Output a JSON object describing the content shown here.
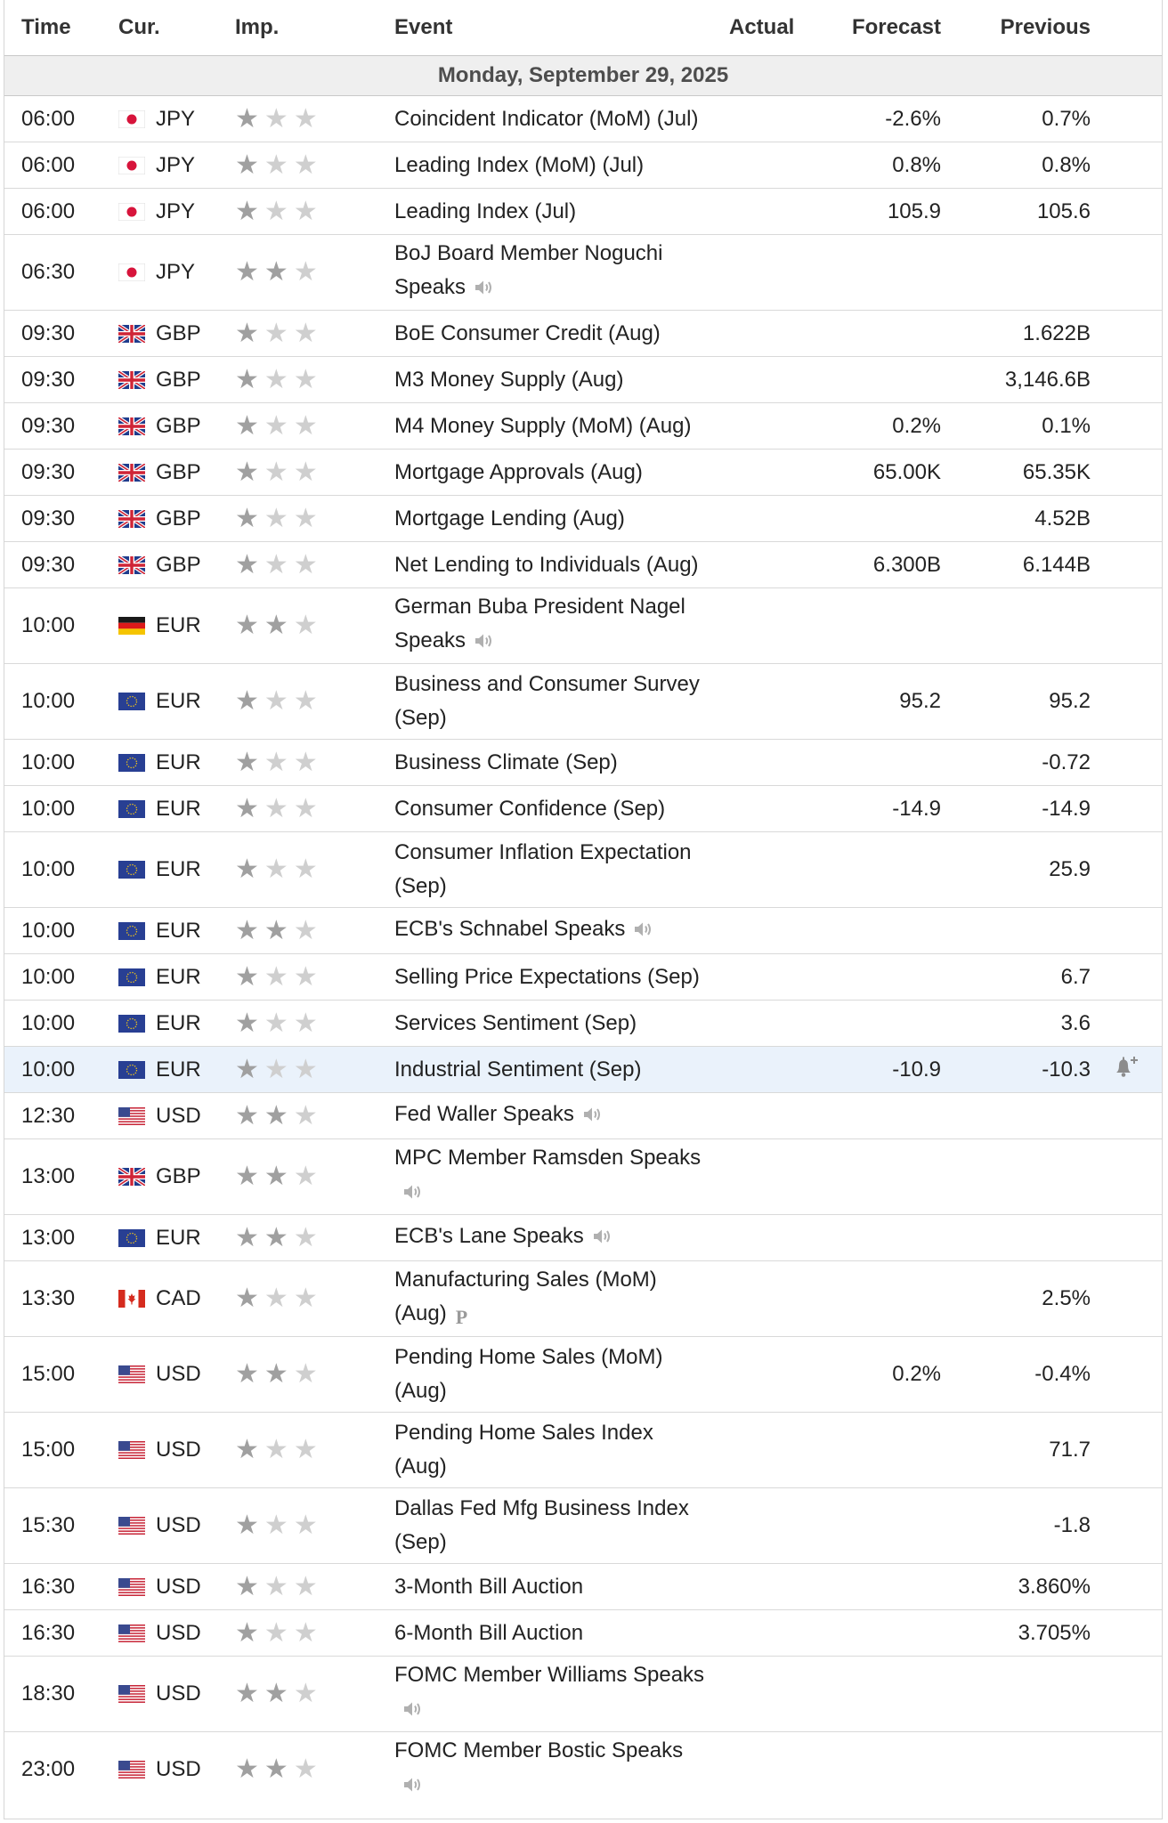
{
  "headers": {
    "time": "Time",
    "cur": "Cur.",
    "imp": "Imp.",
    "event": "Event",
    "actual": "Actual",
    "forecast": "Forecast",
    "previous": "Previous"
  },
  "date_label": "Monday, September 29, 2025",
  "colors": {
    "border": "#d9d9d9",
    "date_row_bg": "#efefef",
    "highlight_row_bg": "#eaf2fb",
    "star_filled": "#a0a0a0",
    "star_empty": "#cfcfcf"
  },
  "icons": {
    "speech": "speaker-icon",
    "preliminary": "preliminary-icon",
    "alert": "bell-plus-icon"
  },
  "events": [
    {
      "time": "06:00",
      "currency": "JPY",
      "flag": "jp",
      "importance": 1,
      "event": "Coincident Indicator (MoM) (Jul)",
      "actual": "",
      "forecast": "-2.6%",
      "previous": "0.7%"
    },
    {
      "time": "06:00",
      "currency": "JPY",
      "flag": "jp",
      "importance": 1,
      "event": "Leading Index (MoM) (Jul)",
      "actual": "",
      "forecast": "0.8%",
      "previous": "0.8%"
    },
    {
      "time": "06:00",
      "currency": "JPY",
      "flag": "jp",
      "importance": 1,
      "event": "Leading Index (Jul)",
      "actual": "",
      "forecast": "105.9",
      "previous": "105.6"
    },
    {
      "time": "06:30",
      "currency": "JPY",
      "flag": "jp",
      "importance": 2,
      "event": "BoJ Board Member Noguchi Speaks",
      "lines": [
        "BoJ Board Member Noguchi",
        "Speaks"
      ],
      "speech": true,
      "actual": "",
      "forecast": "",
      "previous": ""
    },
    {
      "time": "09:30",
      "currency": "GBP",
      "flag": "gb",
      "importance": 1,
      "event": "BoE Consumer Credit (Aug)",
      "actual": "",
      "forecast": "",
      "previous": "1.622B"
    },
    {
      "time": "09:30",
      "currency": "GBP",
      "flag": "gb",
      "importance": 1,
      "event": "M3 Money Supply (Aug)",
      "actual": "",
      "forecast": "",
      "previous": "3,146.6B"
    },
    {
      "time": "09:30",
      "currency": "GBP",
      "flag": "gb",
      "importance": 1,
      "event": "M4 Money Supply (MoM) (Aug)",
      "actual": "",
      "forecast": "0.2%",
      "previous": "0.1%"
    },
    {
      "time": "09:30",
      "currency": "GBP",
      "flag": "gb",
      "importance": 1,
      "event": "Mortgage Approvals (Aug)",
      "actual": "",
      "forecast": "65.00K",
      "previous": "65.35K"
    },
    {
      "time": "09:30",
      "currency": "GBP",
      "flag": "gb",
      "importance": 1,
      "event": "Mortgage Lending (Aug)",
      "actual": "",
      "forecast": "",
      "previous": "4.52B"
    },
    {
      "time": "09:30",
      "currency": "GBP",
      "flag": "gb",
      "importance": 1,
      "event": "Net Lending to Individuals (Aug)",
      "actual": "",
      "forecast": "6.300B",
      "previous": "6.144B"
    },
    {
      "time": "10:00",
      "currency": "EUR",
      "flag": "de",
      "importance": 2,
      "event": "German Buba President Nagel Speaks",
      "lines": [
        "German Buba President Nagel",
        "Speaks"
      ],
      "speech": true,
      "actual": "",
      "forecast": "",
      "previous": ""
    },
    {
      "time": "10:00",
      "currency": "EUR",
      "flag": "eu",
      "importance": 1,
      "event": "Business and Consumer Survey (Sep)",
      "lines": [
        "Business and Consumer Survey",
        "(Sep)"
      ],
      "actual": "",
      "forecast": "95.2",
      "previous": "95.2"
    },
    {
      "time": "10:00",
      "currency": "EUR",
      "flag": "eu",
      "importance": 1,
      "event": "Business Climate (Sep)",
      "actual": "",
      "forecast": "",
      "previous": "-0.72"
    },
    {
      "time": "10:00",
      "currency": "EUR",
      "flag": "eu",
      "importance": 1,
      "event": "Consumer Confidence (Sep)",
      "actual": "",
      "forecast": "-14.9",
      "previous": "-14.9"
    },
    {
      "time": "10:00",
      "currency": "EUR",
      "flag": "eu",
      "importance": 1,
      "event": "Consumer Inflation Expectation (Sep)",
      "lines": [
        "Consumer Inflation Expectation",
        "(Sep)"
      ],
      "actual": "",
      "forecast": "",
      "previous": "25.9"
    },
    {
      "time": "10:00",
      "currency": "EUR",
      "flag": "eu",
      "importance": 2,
      "event": "ECB's Schnabel Speaks",
      "speech": true,
      "actual": "",
      "forecast": "",
      "previous": ""
    },
    {
      "time": "10:00",
      "currency": "EUR",
      "flag": "eu",
      "importance": 1,
      "event": "Selling Price Expectations (Sep)",
      "actual": "",
      "forecast": "",
      "previous": "6.7"
    },
    {
      "time": "10:00",
      "currency": "EUR",
      "flag": "eu",
      "importance": 1,
      "event": "Services Sentiment (Sep)",
      "actual": "",
      "forecast": "",
      "previous": "3.6"
    },
    {
      "time": "10:00",
      "currency": "EUR",
      "flag": "eu",
      "importance": 1,
      "event": "Industrial Sentiment (Sep)",
      "actual": "",
      "forecast": "-10.9",
      "previous": "-10.3",
      "highlight": true,
      "alert": true
    },
    {
      "time": "12:30",
      "currency": "USD",
      "flag": "us",
      "importance": 2,
      "event": "Fed Waller Speaks",
      "speech": true,
      "actual": "",
      "forecast": "",
      "previous": ""
    },
    {
      "time": "13:00",
      "currency": "GBP",
      "flag": "gb",
      "importance": 2,
      "event": "MPC Member Ramsden Speaks",
      "lines": [
        "MPC Member Ramsden Speaks",
        ""
      ],
      "speech": true,
      "actual": "",
      "forecast": "",
      "previous": ""
    },
    {
      "time": "13:00",
      "currency": "EUR",
      "flag": "eu",
      "importance": 2,
      "event": "ECB's Lane Speaks",
      "speech": true,
      "actual": "",
      "forecast": "",
      "previous": ""
    },
    {
      "time": "13:30",
      "currency": "CAD",
      "flag": "ca",
      "importance": 1,
      "event": "Manufacturing Sales (MoM) (Aug)",
      "lines": [
        "Manufacturing Sales (MoM)",
        "(Aug)"
      ],
      "preliminary": true,
      "actual": "",
      "forecast": "",
      "previous": "2.5%"
    },
    {
      "time": "15:00",
      "currency": "USD",
      "flag": "us",
      "importance": 2,
      "event": "Pending Home Sales (MoM) (Aug)",
      "lines": [
        "Pending Home Sales (MoM)",
        "(Aug)"
      ],
      "actual": "",
      "forecast": "0.2%",
      "previous": "-0.4%"
    },
    {
      "time": "15:00",
      "currency": "USD",
      "flag": "us",
      "importance": 1,
      "event": "Pending Home Sales Index (Aug)",
      "lines": [
        "Pending Home Sales Index",
        "(Aug)"
      ],
      "actual": "",
      "forecast": "",
      "previous": "71.7"
    },
    {
      "time": "15:30",
      "currency": "USD",
      "flag": "us",
      "importance": 1,
      "event": "Dallas Fed Mfg Business Index (Sep)",
      "lines": [
        "Dallas Fed Mfg Business Index",
        "(Sep)"
      ],
      "actual": "",
      "forecast": "",
      "previous": "-1.8"
    },
    {
      "time": "16:30",
      "currency": "USD",
      "flag": "us",
      "importance": 1,
      "event": "3-Month Bill Auction",
      "actual": "",
      "forecast": "",
      "previous": "3.860%"
    },
    {
      "time": "16:30",
      "currency": "USD",
      "flag": "us",
      "importance": 1,
      "event": "6-Month Bill Auction",
      "actual": "",
      "forecast": "",
      "previous": "3.705%"
    },
    {
      "time": "18:30",
      "currency": "USD",
      "flag": "us",
      "importance": 2,
      "event": "FOMC Member Williams Speaks",
      "lines": [
        "FOMC Member Williams Speaks",
        ""
      ],
      "speech": true,
      "actual": "",
      "forecast": "",
      "previous": ""
    },
    {
      "time": "23:00",
      "currency": "USD",
      "flag": "us",
      "importance": 2,
      "event": "FOMC Member Bostic Speaks",
      "lines": [
        "FOMC Member Bostic Speaks",
        ""
      ],
      "speech": true,
      "actual": "",
      "forecast": "",
      "previous": ""
    }
  ]
}
